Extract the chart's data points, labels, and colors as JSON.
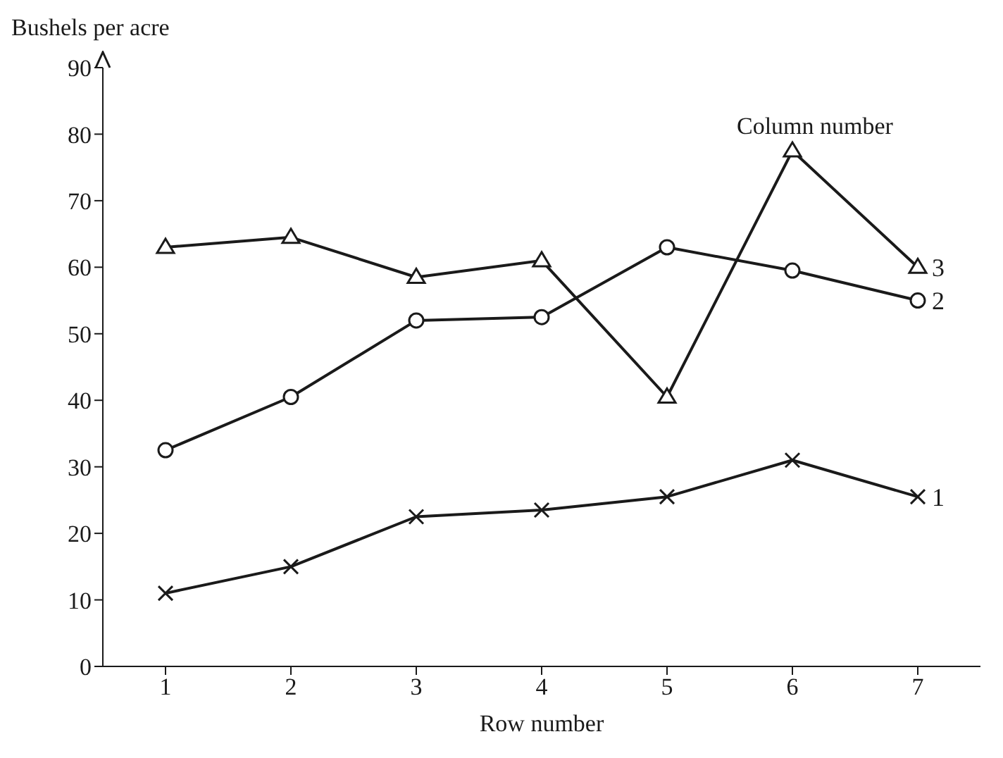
{
  "chart_data": {
    "type": "line",
    "xlabel": "Row number",
    "ylabel": "Bushels per acre",
    "legend_title": "Column number",
    "x": [
      1,
      2,
      3,
      4,
      5,
      6,
      7
    ],
    "xlim": [
      0.5,
      7.5
    ],
    "xticks": [
      1,
      2,
      3,
      4,
      5,
      6,
      7
    ],
    "ylim": [
      0,
      90
    ],
    "yticks": [
      0,
      10,
      20,
      30,
      40,
      50,
      60,
      70,
      80,
      90
    ],
    "grid": false,
    "series": [
      {
        "name": "1",
        "color": "#1a1a1a",
        "marker": "cross",
        "values": [
          11,
          15,
          22.5,
          23.5,
          25.5,
          31,
          25.5
        ]
      },
      {
        "name": "2",
        "color": "#1a1a1a",
        "marker": "circle",
        "values": [
          32.5,
          40.5,
          52,
          52.5,
          63,
          59.5,
          55
        ]
      },
      {
        "name": "3",
        "color": "#1a1a1a",
        "marker": "triangle",
        "values": [
          63,
          64.5,
          58.5,
          61,
          40.5,
          77.5,
          60
        ]
      }
    ]
  }
}
